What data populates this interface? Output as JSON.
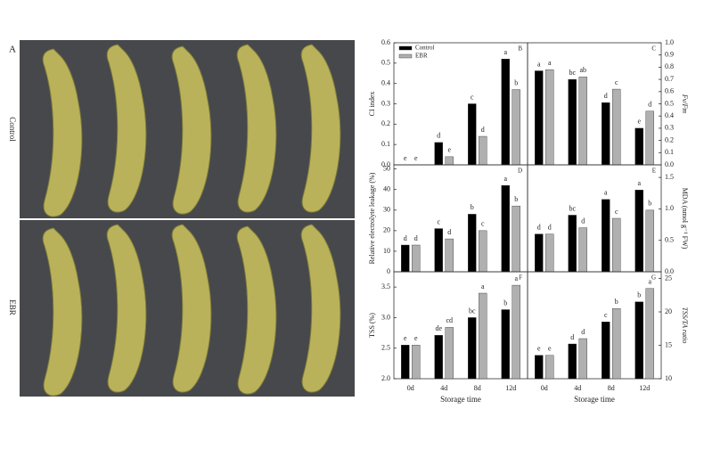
{
  "figure": {
    "panel_label": "A",
    "row_labels": [
      "Control",
      "EBR"
    ]
  },
  "chart_data": [
    {
      "type": "bar",
      "panel_label": "B",
      "y_label": "CI index",
      "y_axis_side": "left",
      "legend": "top-left",
      "ylim": [
        0,
        0.6
      ],
      "yticks": [
        {
          "value": 0,
          "label": "0.0"
        },
        0.1,
        0.2,
        0.3,
        0.4,
        0.5,
        0.6
      ],
      "series": [
        {
          "name": "Control",
          "color": "#000000",
          "values": [
            0,
            0.11,
            0.3,
            0.52
          ],
          "letters": [
            "e",
            "d",
            "c",
            "a"
          ]
        },
        {
          "name": "EBR",
          "color": "#b0b0b0",
          "values": [
            0,
            0.04,
            0.14,
            0.37
          ],
          "letters": [
            "e",
            "e",
            "d",
            "b"
          ]
        }
      ]
    },
    {
      "type": "bar",
      "panel_label": "C",
      "y_label": "Fv/Fm",
      "y_axis_side": "right",
      "ylim": [
        0,
        1
      ],
      "yticks": [
        {
          "value": 0,
          "label": "0.0"
        },
        0.1,
        0.2,
        0.3,
        0.4,
        0.5,
        0.6,
        0.7,
        0.8,
        0.9,
        {
          "value": 1,
          "label": "1.0"
        }
      ],
      "series": [
        {
          "name": "Control",
          "color": "#000000",
          "values": [
            0.77,
            0.7,
            0.51,
            0.3
          ],
          "letters": [
            "a",
            "bc",
            "d",
            "e"
          ]
        },
        {
          "name": "EBR",
          "color": "#b0b0b0",
          "values": [
            0.78,
            0.72,
            0.62,
            0.44
          ],
          "letters": [
            "a",
            "ab",
            "c",
            "d"
          ]
        }
      ]
    },
    {
      "type": "bar",
      "panel_label": "D",
      "y_label": "Relative electrolyte leakage (%)",
      "y_axis_side": "left",
      "ylim": [
        0,
        52
      ],
      "yticks": [
        0,
        10,
        20,
        30,
        40,
        50
      ],
      "series": [
        {
          "name": "Control",
          "color": "#000000",
          "values": [
            13,
            21,
            28,
            42
          ],
          "letters": [
            "d",
            "c",
            "b",
            "a"
          ]
        },
        {
          "name": "EBR",
          "color": "#b0b0b0",
          "values": [
            13,
            16,
            20,
            32
          ],
          "letters": [
            "d",
            "d",
            "c",
            "b"
          ]
        }
      ]
    },
    {
      "type": "bar",
      "panel_label": "E",
      "y_label": "MDA (nmol g⁻¹ FW)",
      "y_axis_side": "right",
      "ylim": [
        0,
        1.7
      ],
      "yticks": [
        {
          "value": 0,
          "label": "0.0"
        },
        0.5,
        {
          "value": 1,
          "label": "1.0"
        },
        1.5
      ],
      "series": [
        {
          "name": "Control",
          "color": "#000000",
          "values": [
            0.6,
            0.9,
            1.15,
            1.3
          ],
          "letters": [
            "d",
            "bc",
            "a",
            "a"
          ]
        },
        {
          "name": "EBR",
          "color": "#b0b0b0",
          "values": [
            0.6,
            0.7,
            0.85,
            0.98
          ],
          "letters": [
            "d",
            "d",
            "c",
            "b"
          ]
        }
      ]
    },
    {
      "type": "bar",
      "panel_label": "F",
      "y_label": "TSS (%)",
      "y_axis_side": "left",
      "x_label": "Storage time",
      "categories": [
        "0d",
        "4d",
        "8d",
        "12d"
      ],
      "ylim": [
        2,
        3.75
      ],
      "yticks": [
        {
          "value": 2,
          "label": "2.0"
        },
        2.5,
        {
          "value": 3,
          "label": "3.0"
        },
        3.5
      ],
      "series": [
        {
          "name": "Control",
          "color": "#000000",
          "values": [
            2.55,
            2.71,
            3.0,
            3.13
          ],
          "letters": [
            "e",
            "de",
            "bc",
            "b"
          ]
        },
        {
          "name": "EBR",
          "color": "#b0b0b0",
          "values": [
            2.55,
            2.84,
            3.4,
            3.53
          ],
          "letters": [
            "e",
            "cd",
            "a",
            "a"
          ]
        }
      ]
    },
    {
      "type": "bar",
      "panel_label": "G",
      "y_label": "TSS/TA ratio",
      "y_axis_side": "right",
      "x_label": "Storage time",
      "categories": [
        "0d",
        "4d",
        "8d",
        "12d"
      ],
      "ylim": [
        10,
        26
      ],
      "yticks": [
        10,
        15,
        20,
        25
      ],
      "series": [
        {
          "name": "Control",
          "color": "#000000",
          "values": [
            13.5,
            15.2,
            18.5,
            21.5
          ],
          "letters": [
            "e",
            "d",
            "c",
            "b"
          ]
        },
        {
          "name": "EBR",
          "color": "#b0b0b0",
          "values": [
            13.5,
            16,
            20.5,
            23.5
          ],
          "letters": [
            "e",
            "d",
            "b",
            "a"
          ]
        }
      ]
    }
  ]
}
